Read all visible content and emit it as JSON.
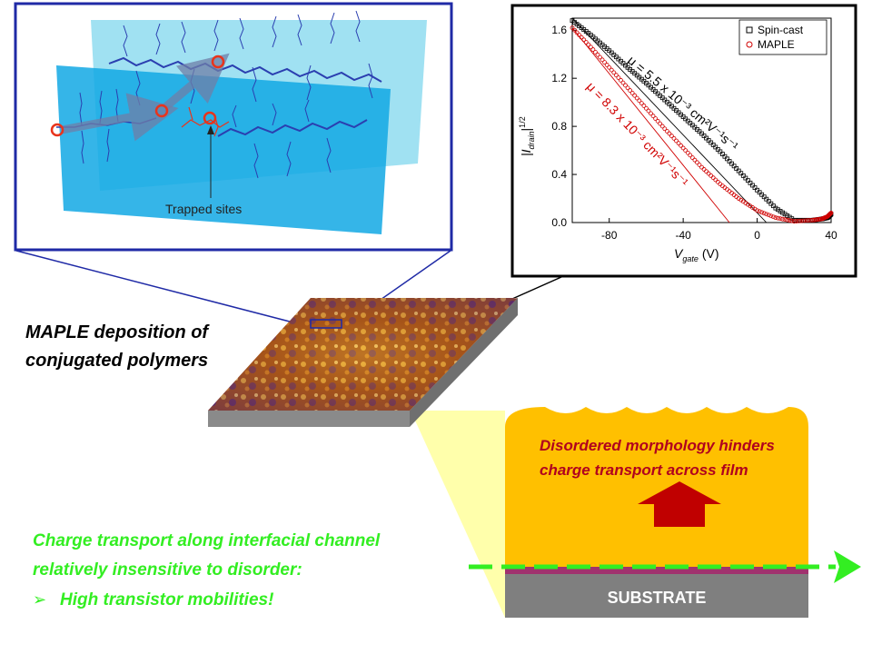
{
  "colors": {
    "inset_border": "#1f2aa6",
    "plane_back": "#8fdcf0",
    "plane_front": "#12a8e4",
    "polymer": "#2b3fb0",
    "trap": "#e8341c",
    "film_gold": "#ffc000",
    "film_dark": "#5a2a6a",
    "substrate": "#7f7f7f",
    "arrow_red": "#c00000",
    "text_red": "#b0001e",
    "text_green": "#33ee22",
    "spin_cast": "#000000",
    "maple": "#d00000",
    "yellow_cone": "#ffff66"
  },
  "inset_molecule": {
    "trap_label": "Trapped sites"
  },
  "main": {
    "maple_title_line1": "MAPLE deposition of",
    "maple_title_line2": "conjugated polymers",
    "disorder_line1": "Disordered morphology hinders",
    "disorder_line2": "charge transport across film",
    "substrate_label": "SUBSTRATE",
    "channel_line1": "Charge transport along interfacial channel",
    "channel_line2": "relatively insensitive to disorder:",
    "channel_bullet": "High transistor mobilities!",
    "bullet_glyph": "➢"
  },
  "chart_data": {
    "type": "scatter",
    "xlabel_main": "V",
    "xlabel_sub": "gate",
    "xlabel_unit": "(V)",
    "ylabel_main": "|I",
    "ylabel_sub": "drain",
    "ylabel_sup": "1/2",
    "xlim": [
      -100,
      40
    ],
    "ylim": [
      0,
      1.7
    ],
    "xticks": [
      -80,
      -40,
      0,
      40
    ],
    "xtick_labels": [
      "-80",
      "-40",
      "0",
      "40"
    ],
    "yticks": [
      0.0,
      0.4,
      0.8,
      1.2,
      1.6
    ],
    "ytick_labels": [
      "0.0",
      "0.4",
      "0.8",
      "1.2",
      "1.6"
    ],
    "grid": false,
    "legend_position": "top-right",
    "series": [
      {
        "name": "Spin-cast",
        "marker": "square",
        "x": [
          -100,
          -90,
          -80,
          -70,
          -60,
          -50,
          -40,
          -30,
          -20,
          -10,
          0,
          10,
          20,
          30,
          35,
          38,
          40
        ],
        "y": [
          1.68,
          1.56,
          1.43,
          1.29,
          1.16,
          1.02,
          0.88,
          0.74,
          0.59,
          0.43,
          0.27,
          0.12,
          0.02,
          0.02,
          0.03,
          0.04,
          0.07
        ],
        "fit_mobility_label": "μ = 5.5 x 10⁻³ cm²V⁻¹s⁻¹"
      },
      {
        "name": "MAPLE",
        "marker": "circle",
        "x": [
          -100,
          -90,
          -80,
          -70,
          -60,
          -50,
          -40,
          -30,
          -20,
          -10,
          0,
          10,
          20,
          30,
          35,
          38,
          40
        ],
        "y": [
          1.62,
          1.46,
          1.29,
          1.12,
          0.95,
          0.78,
          0.62,
          0.46,
          0.32,
          0.2,
          0.1,
          0.04,
          0.01,
          0.02,
          0.03,
          0.05,
          0.08
        ],
        "fit_mobility_label": "μ = 8.3 x 10⁻³ cm²V⁻¹s⁻¹"
      }
    ],
    "fit_lines": [
      {
        "series": "Spin-cast",
        "x": [
          -100,
          5
        ],
        "y": [
          1.7,
          0.0
        ]
      },
      {
        "series": "MAPLE",
        "x": [
          -100,
          -15
        ],
        "y": [
          1.62,
          0.0
        ]
      }
    ]
  }
}
